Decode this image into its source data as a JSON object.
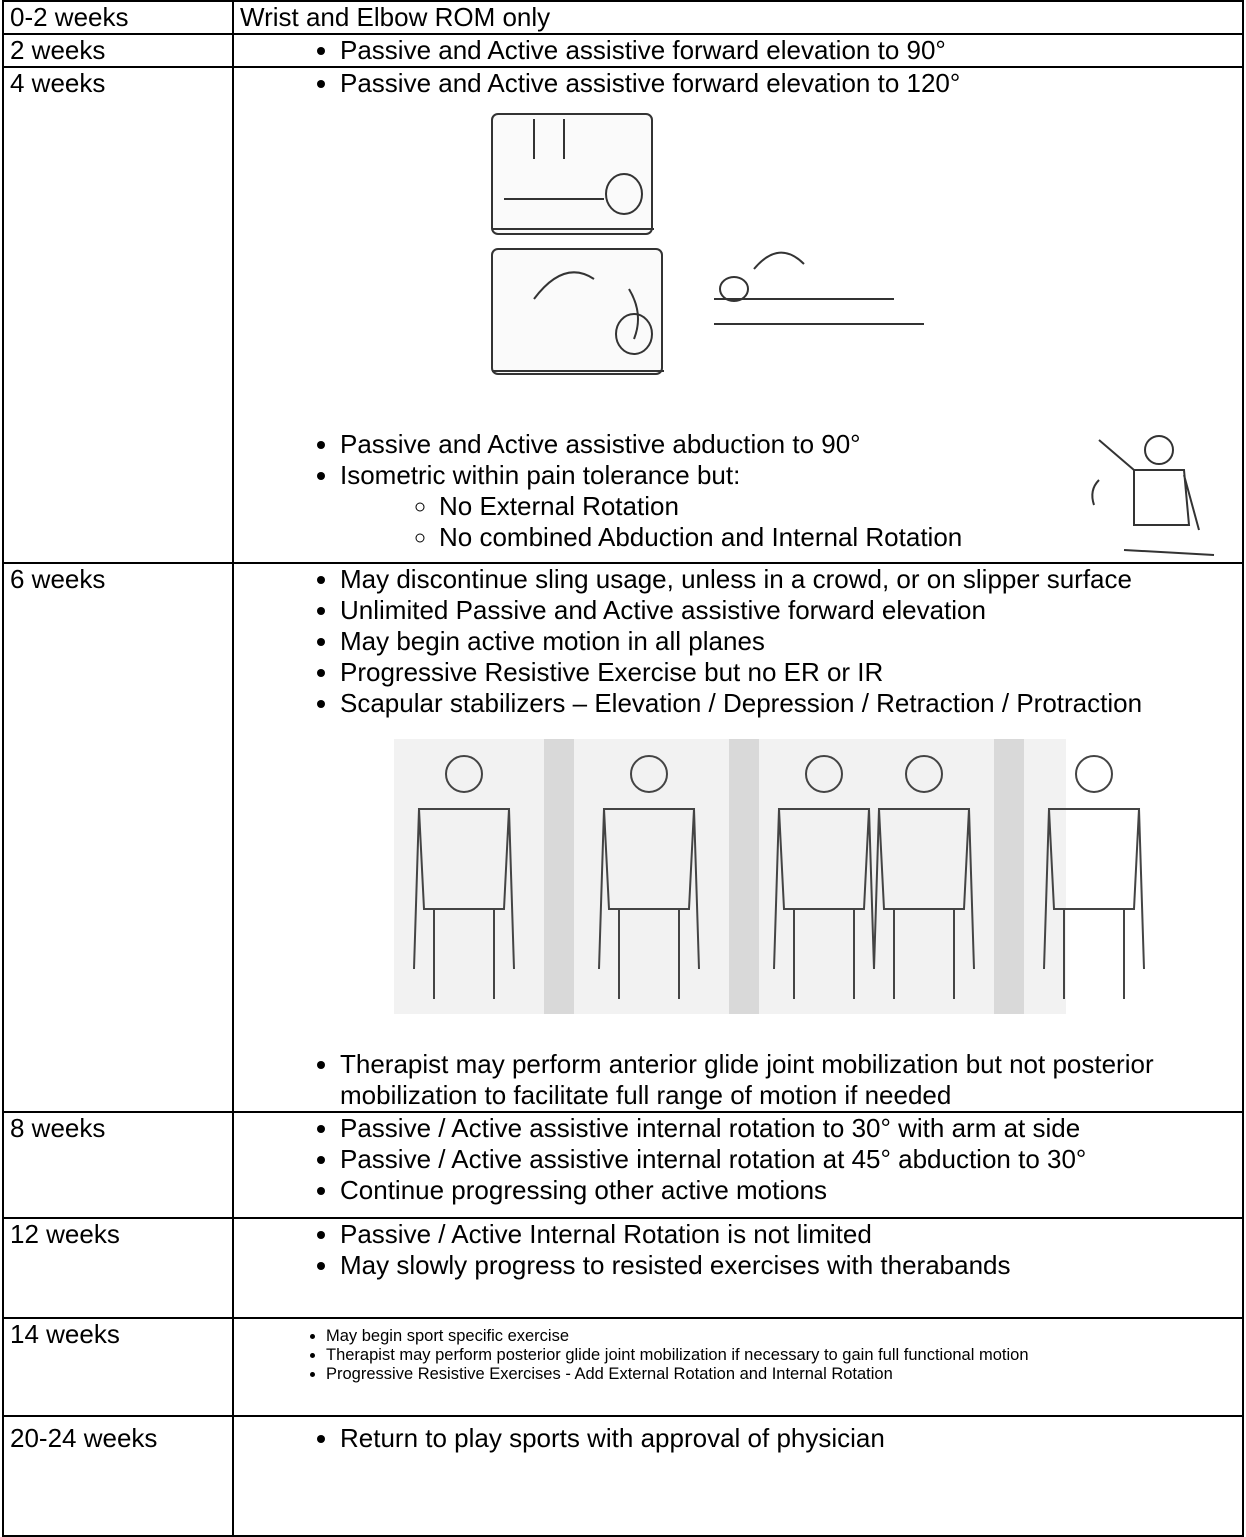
{
  "table": {
    "rows": [
      {
        "period": "0-2 weeks",
        "text": "Wrist and Elbow ROM only"
      },
      {
        "period": "2 weeks",
        "bullets": [
          "Passive and Active assistive forward elevation to 90°"
        ]
      },
      {
        "period": "4 weeks",
        "bullets": [
          "Passive and Active assistive forward elevation to 120°"
        ],
        "bullets_after": [
          "Passive and Active assistive abduction to 90°",
          "Isometric within pain tolerance but:"
        ],
        "sub_bullets": [
          "No External Rotation",
          "No combined Abduction and Internal Rotation"
        ]
      },
      {
        "period": "6 weeks",
        "bullets": [
          "May discontinue sling usage, unless in a crowd, or on slipper surface",
          "Unlimited Passive and Active assistive forward elevation",
          "May begin active motion in all planes",
          "Progressive Resistive Exercise but no ER or IR",
          "Scapular stabilizers – Elevation / Depression / Retraction / Protraction"
        ],
        "bullets_after": [
          "Therapist may perform anterior glide joint mobilization but not posterior mobilization to facilitate full range of motion if needed"
        ]
      },
      {
        "period": "8 weeks",
        "bullets": [
          "Passive / Active assistive internal rotation to 30° with arm at side",
          "Passive / Active assistive internal rotation at 45° abduction to 30°",
          "Continue progressing other active motions"
        ]
      },
      {
        "period": "12 weeks",
        "bullets": [
          "Passive / Active Internal Rotation is not limited",
          "May slowly progress to resisted exercises with therabands"
        ]
      },
      {
        "period": "14 weeks",
        "bullets": [
          "May begin sport specific exercise",
          "Therapist may perform posterior glide joint mobilization if necessary to gain full functional motion",
          "Progressive Resistive Exercises - Add External Rotation and Internal Rotation"
        ]
      },
      {
        "period": "20-24 weeks",
        "bullets": [
          "Return to play sports with approval of physician"
        ]
      }
    ]
  }
}
